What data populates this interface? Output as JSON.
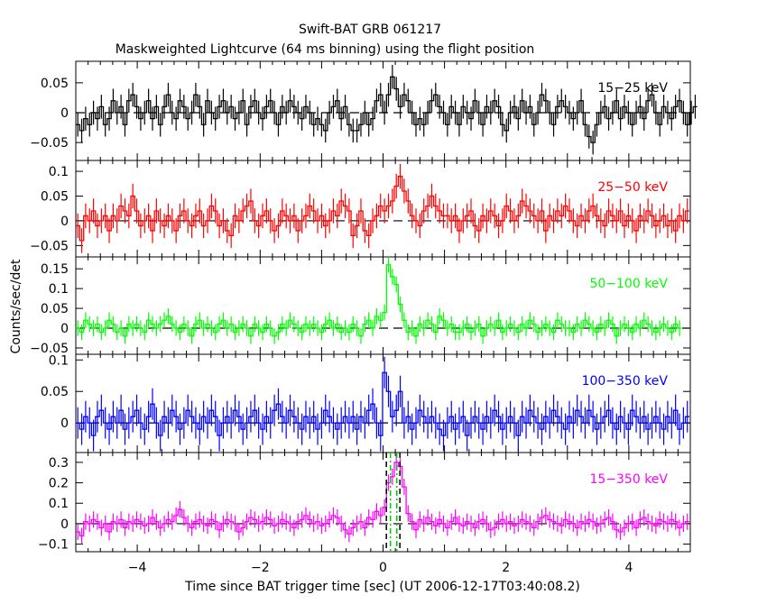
{
  "chart_data": {
    "type": "line",
    "title": "Swift-BAT GRB 061217",
    "subtitle": "Maskweighted Lightcurve (64 ms binning) using the flight position",
    "xlabel": "Time since BAT trigger time [sec] (UT 2006-12-17T03:40:08.2)",
    "ylabel": "Counts/sec/det",
    "xlim": [
      -5,
      5
    ],
    "x_ticks": [
      -4,
      -2,
      0,
      2,
      4
    ],
    "x_tick_labels": [
      "−4",
      "−2",
      "0",
      "2",
      "4"
    ],
    "bin_width": 0.064,
    "x_start": -5.0,
    "marker_lines": {
      "black_dashed": [
        0.054,
        0.274
      ],
      "green_dashdot": [
        0.12,
        0.224
      ]
    },
    "series": [
      {
        "name": "15−25 keV",
        "color": "#000000",
        "ylim": [
          -0.08,
          0.086
        ],
        "err": 0.02,
        "y_ticks": [
          -0.05,
          0,
          0.05
        ],
        "y_tick_labels": [
          "−0.05",
          "0",
          "0.05"
        ],
        "values": [
          -0.02,
          -0.03,
          -0.01,
          -0.02,
          0.0,
          -0.01,
          0.01,
          -0.02,
          -0.01,
          0.02,
          0.0,
          0.01,
          -0.02,
          0.02,
          0.03,
          0.01,
          -0.01,
          0.0,
          0.02,
          -0.01,
          0.01,
          -0.02,
          0.01,
          0.03,
          0.0,
          -0.01,
          0.02,
          0.01,
          -0.01,
          0.0,
          0.03,
          0.01,
          -0.02,
          0.02,
          0.0,
          -0.01,
          0.01,
          0.02,
          0.0,
          0.01,
          -0.01,
          0.0,
          0.02,
          -0.02,
          0.01,
          0.02,
          0.0,
          -0.01,
          0.01,
          0.02,
          0.0,
          -0.02,
          0.01,
          0.0,
          0.02,
          0.01,
          0.0,
          -0.01,
          0.01,
          0.0,
          -0.02,
          -0.01,
          -0.02,
          -0.03,
          0.0,
          0.01,
          0.02,
          -0.01,
          0.01,
          -0.02,
          -0.03,
          -0.03,
          -0.02,
          0.0,
          -0.02,
          -0.01,
          0.02,
          0.03,
          0.0,
          0.03,
          0.06,
          0.04,
          0.01,
          0.03,
          0.02,
          0.0,
          -0.02,
          -0.01,
          -0.02,
          0.0,
          0.02,
          0.03,
          0.01,
          0.0,
          -0.02,
          0.01,
          0.0,
          -0.02,
          0.01,
          0.0,
          -0.01,
          0.02,
          0.0,
          -0.02,
          0.01,
          0.0,
          0.02,
          0.01,
          -0.02,
          -0.03,
          0.0,
          0.01,
          -0.01,
          0.02,
          0.0,
          0.01,
          -0.02,
          0.0,
          0.03,
          0.02,
          0.0,
          -0.02,
          0.01,
          0.02,
          0.01,
          0.0,
          -0.01,
          0.0,
          0.02,
          -0.02,
          -0.04,
          -0.05,
          -0.02,
          0.0,
          0.01,
          -0.01,
          0.0,
          0.02,
          -0.01,
          0.01,
          0.0,
          -0.02,
          0.0,
          0.01,
          -0.01,
          0.02,
          0.03,
          0.0,
          -0.02,
          0.01,
          0.0,
          -0.01,
          0.01,
          0.02,
          0.0,
          -0.02,
          0.0,
          0.01
        ]
      },
      {
        "name": "25−50 keV",
        "color": "#ff0000",
        "ylim": [
          -0.073,
          0.122
        ],
        "err": 0.025,
        "y_ticks": [
          -0.05,
          0,
          0.05,
          0.1
        ],
        "y_tick_labels": [
          "−0.05",
          "0",
          "0.05",
          "0.1"
        ],
        "values": [
          -0.01,
          -0.04,
          0.01,
          0.0,
          0.02,
          -0.01,
          0.0,
          0.01,
          -0.02,
          0.01,
          0.0,
          0.03,
          0.02,
          0.01,
          0.05,
          0.02,
          -0.01,
          0.0,
          0.01,
          -0.02,
          0.02,
          0.0,
          -0.01,
          0.01,
          0.0,
          -0.02,
          0.01,
          0.02,
          0.0,
          -0.01,
          0.01,
          0.02,
          -0.01,
          0.0,
          0.03,
          0.02,
          -0.01,
          0.0,
          -0.02,
          -0.03,
          0.01,
          0.0,
          0.02,
          0.03,
          0.04,
          0.0,
          -0.01,
          0.01,
          0.02,
          0.0,
          -0.02,
          -0.01,
          0.02,
          0.01,
          0.0,
          0.01,
          -0.02,
          0.0,
          0.01,
          0.03,
          0.02,
          0.0,
          0.01,
          -0.01,
          0.0,
          0.02,
          0.01,
          0.04,
          0.03,
          0.02,
          -0.03,
          -0.01,
          0.02,
          -0.02,
          -0.03,
          0.0,
          0.01,
          0.03,
          0.02,
          0.03,
          0.04,
          0.07,
          0.09,
          0.06,
          0.04,
          0.01,
          0.0,
          -0.01,
          0.02,
          0.03,
          0.05,
          0.03,
          0.02,
          0.01,
          0.01,
          0.0,
          0.01,
          -0.02,
          0.0,
          0.01,
          0.02,
          -0.01,
          -0.02,
          0.01,
          0.0,
          0.02,
          0.01,
          -0.01,
          0.0,
          0.03,
          0.02,
          0.0,
          0.01,
          0.04,
          0.03,
          0.02,
          0.01,
          0.0,
          0.02,
          -0.02,
          0.01,
          0.0,
          0.02,
          0.01,
          0.03,
          0.02,
          0.0,
          -0.01,
          0.01,
          0.0,
          0.02,
          0.03,
          0.01,
          0.0,
          -0.01,
          0.02,
          0.01,
          0.0,
          0.02,
          -0.01,
          0.01,
          0.0,
          -0.02,
          0.01,
          0.0,
          0.02,
          0.01,
          -0.01,
          0.0,
          0.01,
          -0.01,
          0.0,
          -0.02,
          0.01,
          0.0,
          0.02
        ]
      },
      {
        "name": "50−100 keV",
        "color": "#00ff00",
        "ylim": [
          -0.066,
          0.18
        ],
        "err": 0.02,
        "y_ticks": [
          -0.05,
          0,
          0.05,
          0.1,
          0.15
        ],
        "y_tick_labels": [
          "−0.05",
          "0",
          "0.05",
          "0.1",
          "0.15"
        ],
        "values": [
          0.0,
          -0.01,
          0.02,
          0.01,
          0.0,
          0.01,
          -0.01,
          0.0,
          0.02,
          0.01,
          -0.01,
          0.0,
          -0.02,
          0.01,
          0.0,
          0.01,
          0.0,
          -0.01,
          0.02,
          0.01,
          0.0,
          0.01,
          0.02,
          0.03,
          0.01,
          0.0,
          -0.01,
          0.01,
          0.0,
          -0.02,
          0.01,
          0.02,
          0.0,
          0.01,
          0.0,
          -0.01,
          0.01,
          0.02,
          0.0,
          0.01,
          -0.01,
          0.0,
          0.01,
          0.0,
          -0.02,
          0.01,
          0.0,
          -0.01,
          0.01,
          0.0,
          -0.02,
          -0.01,
          0.01,
          0.0,
          0.02,
          0.01,
          0.0,
          -0.01,
          0.01,
          0.0,
          0.01,
          0.0,
          -0.01,
          0.01,
          0.02,
          0.0,
          0.01,
          -0.01,
          0.0,
          -0.01,
          0.01,
          0.0,
          -0.02,
          0.01,
          0.02,
          0.0,
          0.03,
          0.02,
          0.04,
          0.16,
          0.13,
          0.11,
          0.06,
          0.02,
          -0.01,
          0.0,
          -0.02,
          0.01,
          0.0,
          0.02,
          0.01,
          -0.01,
          0.03,
          0.02,
          0.0,
          0.01,
          -0.01,
          -0.01,
          0.0,
          0.01,
          -0.01,
          0.0,
          0.01,
          -0.02,
          0.0,
          0.01,
          0.0,
          0.02,
          -0.01,
          0.0,
          0.01,
          0.0,
          -0.01,
          0.01,
          0.0,
          0.02,
          0.01,
          -0.01,
          0.0,
          0.01,
          0.0,
          -0.01,
          0.02,
          0.01,
          0.0,
          0.0,
          -0.01,
          0.01,
          0.0,
          0.02,
          0.01,
          0.0,
          -0.01,
          0.01,
          0.0,
          0.02,
          0.01,
          -0.02,
          0.0,
          0.01,
          0.0,
          -0.01,
          0.01,
          0.0,
          0.02,
          0.01,
          0.0,
          -0.01,
          0.0,
          0.01,
          0.0,
          -0.01,
          0.01,
          0.0
        ]
      },
      {
        "name": "100−350 keV",
        "color": "#0000ff",
        "ylim": [
          -0.047,
          0.109
        ],
        "err": 0.025,
        "y_ticks": [
          0,
          0.05,
          0.1
        ],
        "y_tick_labels": [
          "0",
          "0.05",
          "0.1"
        ],
        "values": [
          0.0,
          -0.01,
          0.01,
          0.0,
          -0.02,
          0.01,
          0.02,
          0.0,
          -0.01,
          0.01,
          0.0,
          0.02,
          -0.01,
          0.0,
          0.01,
          0.02,
          0.0,
          -0.01,
          0.01,
          0.03,
          0.0,
          -0.02,
          0.01,
          0.0,
          0.02,
          0.01,
          -0.01,
          0.0,
          0.02,
          0.01,
          0.0,
          -0.01,
          0.01,
          0.0,
          0.02,
          0.01,
          -0.02,
          0.0,
          0.01,
          0.0,
          0.02,
          0.01,
          -0.01,
          0.0,
          0.01,
          0.02,
          0.0,
          -0.01,
          0.01,
          0.0,
          0.02,
          0.03,
          0.01,
          0.0,
          0.02,
          0.01,
          0.0,
          -0.01,
          0.01,
          0.0,
          0.01,
          -0.01,
          0.0,
          0.02,
          0.01,
          0.0,
          -0.01,
          0.0,
          0.01,
          0.0,
          0.01,
          -0.01,
          0.01,
          0.0,
          0.02,
          0.03,
          0.0,
          -0.02,
          0.08,
          0.05,
          0.01,
          0.02,
          0.05,
          0.0,
          0.01,
          -0.01,
          0.0,
          0.02,
          0.01,
          0.0,
          0.01,
          0.0,
          -0.01,
          -0.02,
          0.0,
          0.01,
          -0.01,
          0.0,
          0.01,
          -0.02,
          0.0,
          0.01,
          0.0,
          -0.01,
          0.01,
          0.0,
          0.02,
          0.01,
          -0.01,
          0.0,
          0.01,
          0.0,
          -0.02,
          0.01,
          0.0,
          0.02,
          0.01,
          0.0,
          -0.01,
          0.01,
          0.0,
          0.02,
          0.01,
          0.0,
          -0.01,
          0.01,
          0.0,
          0.02,
          0.01,
          0.0,
          0.02,
          0.01,
          -0.01,
          0.0,
          0.01,
          0.02,
          0.0,
          -0.01,
          0.01,
          0.0,
          -0.01,
          0.02,
          0.01,
          0.0,
          0.01,
          -0.01,
          0.0,
          0.01,
          0.0,
          -0.01,
          0.01,
          0.0,
          0.02,
          -0.01,
          0.0,
          0.01
        ]
      },
      {
        "name": "15−350 keV",
        "color": "#ff00ff",
        "ylim": [
          -0.137,
          0.348
        ],
        "err": 0.04,
        "y_ticks": [
          -0.1,
          0,
          0.1,
          0.2,
          0.3
        ],
        "y_tick_labels": [
          "−0.1",
          "0",
          "0.1",
          "0.2",
          "0.3"
        ],
        "values": [
          -0.04,
          -0.06,
          0.01,
          0.0,
          0.02,
          0.01,
          -0.02,
          0.0,
          -0.04,
          0.01,
          0.0,
          0.02,
          -0.02,
          0.01,
          0.0,
          0.02,
          0.01,
          -0.01,
          0.0,
          0.03,
          0.01,
          -0.02,
          0.0,
          0.02,
          0.01,
          0.04,
          0.07,
          0.03,
          0.0,
          -0.02,
          0.01,
          0.02,
          0.0,
          -0.01,
          0.02,
          0.01,
          -0.03,
          0.0,
          0.02,
          0.01,
          0.0,
          -0.04,
          -0.02,
          0.01,
          0.03,
          0.02,
          0.0,
          0.01,
          0.03,
          0.02,
          -0.01,
          0.0,
          0.02,
          0.01,
          0.0,
          -0.02,
          0.01,
          0.02,
          0.04,
          0.02,
          0.0,
          0.01,
          -0.01,
          0.0,
          0.02,
          0.04,
          0.03,
          0.0,
          -0.03,
          -0.05,
          -0.02,
          0.0,
          0.01,
          -0.02,
          0.03,
          0.02,
          0.06,
          0.04,
          0.08,
          0.2,
          0.23,
          0.3,
          0.28,
          0.18,
          0.05,
          0.01,
          -0.03,
          0.02,
          0.0,
          0.03,
          0.01,
          -0.01,
          0.02,
          0.0,
          -0.02,
          0.01,
          0.03,
          0.0,
          -0.01,
          0.01,
          0.0,
          -0.02,
          0.01,
          0.02,
          0.0,
          -0.03,
          -0.02,
          0.01,
          0.02,
          0.0,
          0.01,
          -0.01,
          0.0,
          0.02,
          0.01,
          0.0,
          -0.02,
          0.01,
          0.03,
          0.04,
          0.02,
          0.01,
          0.0,
          -0.01,
          0.02,
          0.01,
          0.0,
          -0.02,
          0.01,
          0.0,
          0.02,
          0.01,
          -0.01,
          0.0,
          0.02,
          0.03,
          0.01,
          -0.03,
          -0.04,
          -0.02,
          0.0,
          0.01,
          -0.02,
          0.02,
          0.03,
          0.01,
          0.0,
          -0.01,
          0.02,
          0.01,
          0.0,
          0.02,
          0.01,
          -0.02,
          0.0,
          0.01
        ]
      }
    ]
  }
}
